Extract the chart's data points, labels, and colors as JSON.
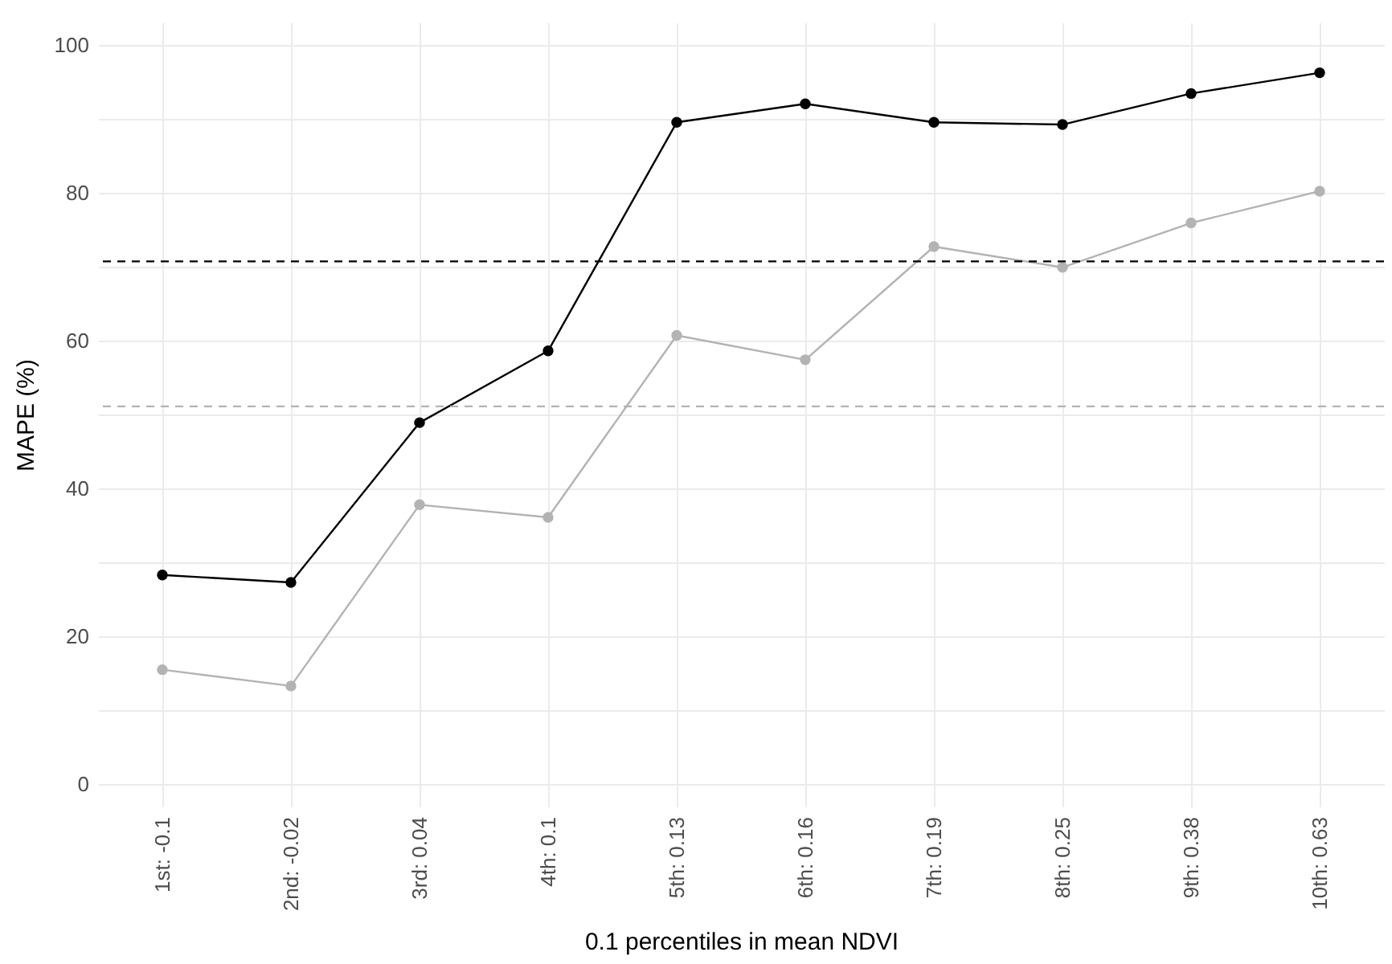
{
  "chart_data": {
    "type": "line",
    "xlabel": "0.1 percentiles in mean NDVI",
    "ylabel": "MAPE (%)",
    "categories": [
      "1st: -0.1",
      "2nd: -0.02",
      "3rd: 0.04",
      "4th: 0.1",
      "5th: 0.13",
      "6th: 0.16",
      "7th: 0.19",
      "8th: 0.25",
      "9th: 0.38",
      "10th: 0.63"
    ],
    "series": [
      {
        "color": "#000000",
        "values": [
          28.3,
          27.3,
          48.9,
          58.6,
          89.5,
          92,
          89.5,
          89.2,
          93.4,
          96.2
        ]
      },
      {
        "color": "#b3b3b3",
        "values": [
          15.5,
          13.3,
          37.8,
          36.1,
          60.7,
          57.4,
          72.7,
          69.9,
          75.9,
          80.2
        ]
      }
    ],
    "ref_lines": [
      {
        "axis": "y",
        "value": 70.7,
        "color": "#000000",
        "line_style": "dashed"
      },
      {
        "axis": "y",
        "value": 51.1,
        "color": "#b3b3b3",
        "line_style": "dashed"
      }
    ],
    "ylim": [
      -3,
      103
    ],
    "yticks": [
      0,
      {
        "value": 10,
        "label": null
      },
      20,
      {
        "value": 30,
        "label": null
      },
      40,
      {
        "value": 50,
        "label": null
      },
      60,
      {
        "value": 70,
        "label": null
      },
      80,
      {
        "value": 90,
        "label": null
      },
      100
    ],
    "grid": true,
    "marker": "circle",
    "line_style": "solid"
  }
}
